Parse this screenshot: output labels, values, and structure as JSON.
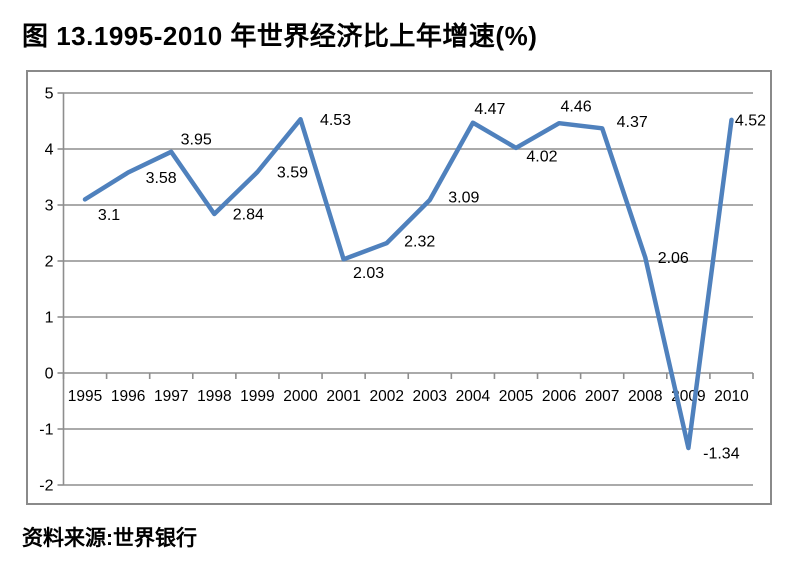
{
  "page": {
    "title": "图 13.1995-2010 年世界经济比上年增速(%)",
    "source": "资料来源:世界银行"
  },
  "chart_data": {
    "type": "line",
    "title": "图 13.1995-2010 年世界经济比上年增速(%)",
    "categories": [
      "1995",
      "1996",
      "1997",
      "1998",
      "1999",
      "2000",
      "2001",
      "2002",
      "2003",
      "2004",
      "2005",
      "2006",
      "2007",
      "2008",
      "2009",
      "2010"
    ],
    "values": [
      3.1,
      3.58,
      3.95,
      2.84,
      3.59,
      4.53,
      2.03,
      2.32,
      3.09,
      4.47,
      4.02,
      4.46,
      4.37,
      2.06,
      -1.34,
      4.52
    ],
    "data_labels": [
      "3.1",
      "3.58",
      "3.95",
      "2.84",
      "3.59",
      "4.53",
      "2.03",
      "2.32",
      "3.09",
      "4.47",
      "4.02",
      "4.46",
      "4.37",
      "2.06",
      "-1.34",
      "4.52"
    ],
    "xlabel": "",
    "ylabel": "",
    "ylim": [
      -2,
      5
    ],
    "y_ticks": [
      "5",
      "4",
      "3",
      "2",
      "1",
      "0",
      "-1",
      "-2"
    ],
    "grid": "horizontal-on",
    "legend": "none",
    "source_note": "资料来源:世界银行",
    "colors": {
      "line": "#4f81bd",
      "gridline": "#8e8e8e",
      "border": "#8a8a8a",
      "text": "#000000",
      "background": "#ffffff"
    }
  }
}
